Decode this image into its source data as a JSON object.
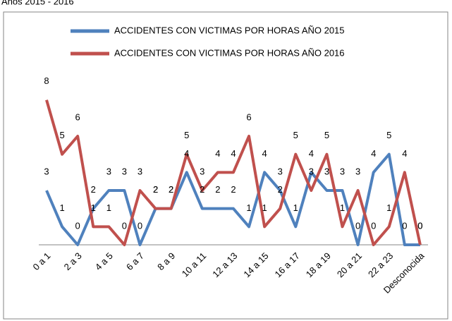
{
  "chart_data": {
    "type": "line",
    "title": "Años 2015 - 2016",
    "categories": [
      "0 a 1",
      null,
      "2 a 3",
      null,
      "4 a 5",
      null,
      "6 a 7",
      null,
      "8 a 9",
      null,
      "10 a 11",
      null,
      "12 a 13",
      null,
      "14 a 15",
      null,
      "16 a 17",
      null,
      "18 a 19",
      null,
      "20 a 21",
      null,
      "22 a 23",
      null,
      "Desconocida"
    ],
    "series": [
      {
        "name": "ACCIDENTES  CON VICTIMAS POR HORAS  AÑO 2015",
        "color": "#4f81bd",
        "values": [
          3,
          1,
          0,
          2,
          3,
          3,
          0,
          2,
          2,
          4,
          2,
          2,
          2,
          1,
          4,
          3,
          1,
          4,
          3,
          3,
          0,
          4,
          5,
          0,
          0
        ]
      },
      {
        "name": "ACCIDENTES  CON VICTIMAS POR HORAS  AÑO 2016",
        "color": "#c0504d",
        "values": [
          8,
          5,
          6,
          1,
          1,
          0,
          3,
          2,
          2,
          5,
          3,
          4,
          4,
          6,
          1,
          2,
          5,
          3,
          5,
          1,
          3,
          0,
          1,
          4,
          0
        ]
      }
    ],
    "ylim": [
      0,
      9
    ]
  }
}
